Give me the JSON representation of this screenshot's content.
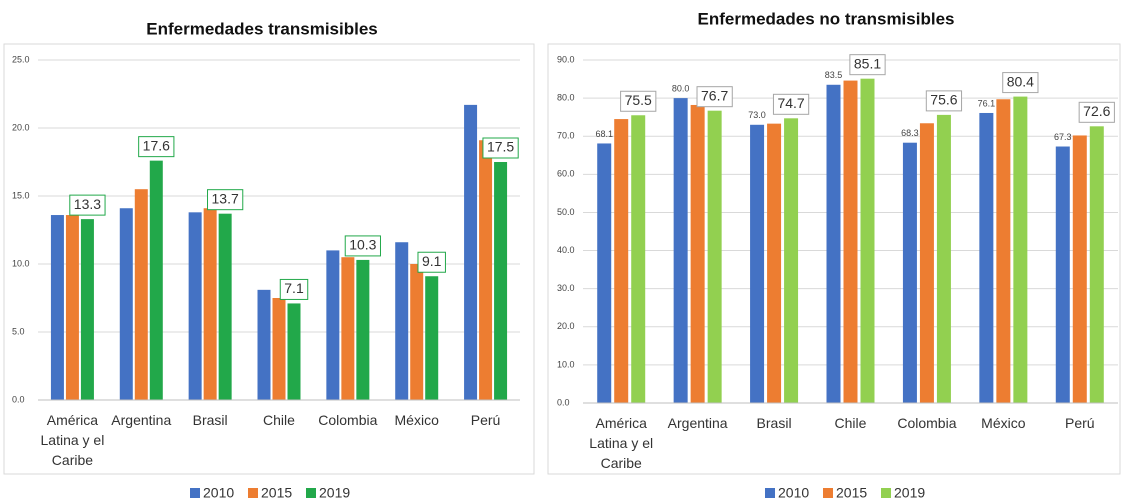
{
  "chart_data": [
    {
      "type": "bar",
      "title": "Enfermedades transmisibles",
      "categories": [
        "América Latina y el Caribe",
        "Argentina",
        "Brasil",
        "Chile",
        "Colombia",
        "México",
        "Perú"
      ],
      "series": [
        {
          "name": "2010",
          "color": "#4472c4",
          "values": [
            13.6,
            14.1,
            13.8,
            8.1,
            11.0,
            11.6,
            21.7
          ]
        },
        {
          "name": "2015",
          "color": "#ed7d31",
          "values": [
            13.6,
            15.5,
            14.1,
            7.5,
            10.5,
            10.0,
            19.1
          ]
        },
        {
          "name": "2019",
          "color": "#22a84a",
          "values": [
            13.3,
            17.6,
            13.7,
            7.1,
            10.3,
            9.1,
            17.5
          ],
          "value_labels": [
            "13.3",
            "17.6",
            "13.7",
            "7.1",
            "10.3",
            "9.1",
            "17.5"
          ]
        }
      ],
      "ylim": [
        0,
        25
      ],
      "yticks": [
        {
          "value": 0,
          "label": "0.0"
        },
        {
          "value": 5,
          "label": "5.0"
        },
        {
          "value": 10,
          "label": "10.0"
        },
        {
          "value": 15,
          "label": "15.0"
        },
        {
          "value": 20,
          "label": "20.0"
        },
        {
          "value": 25,
          "label": "25.0"
        }
      ],
      "grid": true,
      "legend": "bottom"
    },
    {
      "type": "bar",
      "title": "Enfermedades no transmisibles",
      "categories": [
        "América Latina y el Caribe",
        "Argentina",
        "Brasil",
        "Chile",
        "Colombia",
        "México",
        "Perú"
      ],
      "series": [
        {
          "name": "2010",
          "color": "#4472c4",
          "values": [
            68.1,
            80.0,
            73.0,
            83.5,
            68.3,
            76.1,
            67.3
          ],
          "value_labels": [
            "68.1",
            "80.0",
            "73.0",
            "83.5",
            "68.3",
            "76.1",
            "67.3"
          ]
        },
        {
          "name": "2015",
          "color": "#ed7d31",
          "values": [
            74.5,
            78.2,
            73.3,
            84.6,
            73.4,
            79.7,
            70.2
          ]
        },
        {
          "name": "2019",
          "color": "#92d050",
          "values": [
            75.5,
            76.7,
            74.7,
            85.1,
            75.6,
            80.4,
            72.6
          ],
          "value_labels": [
            "75.5",
            "76.7",
            "74.7",
            "85.1",
            "75.6",
            "80.4",
            "72.6"
          ]
        }
      ],
      "ylim": [
        0,
        90
      ],
      "yticks": [
        {
          "value": 0,
          "label": "0.0"
        },
        {
          "value": 10,
          "label": "10.0"
        },
        {
          "value": 20,
          "label": "20.0"
        },
        {
          "value": 30,
          "label": "30.0"
        },
        {
          "value": 40,
          "label": "40.0"
        },
        {
          "value": 50,
          "label": "50.0"
        },
        {
          "value": 60,
          "label": "60.0"
        },
        {
          "value": 70,
          "label": "70.0"
        },
        {
          "value": 80,
          "label": "80.0"
        },
        {
          "value": 90,
          "label": "90.0"
        }
      ],
      "grid": true,
      "legend": "bottom"
    }
  ]
}
